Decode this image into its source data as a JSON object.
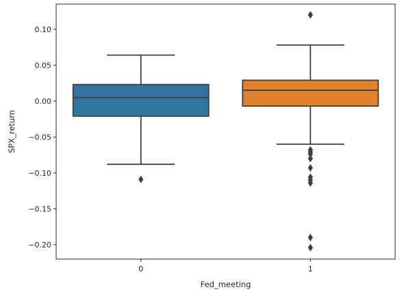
{
  "chart_data": {
    "type": "box",
    "xlabel": "Fed_meeting",
    "ylabel": "SPX_return",
    "ylim": [
      -0.22,
      0.135
    ],
    "yticks": [
      0.1,
      0.05,
      0.0,
      -0.05,
      -0.1,
      -0.15,
      -0.2
    ],
    "ytick_labels": [
      "0.10",
      "0.05",
      "0.00",
      "−0.05",
      "−0.10",
      "−0.15",
      "−0.20"
    ],
    "categories": [
      "0",
      "1"
    ],
    "grid": false,
    "legend": "none",
    "boxes": [
      {
        "category": "0",
        "color": "#3274a1",
        "whisker_low": -0.088,
        "q1": -0.021,
        "median": 0.005,
        "q3": 0.023,
        "whisker_high": 0.064,
        "outliers": [
          -0.109
        ]
      },
      {
        "category": "1",
        "color": "#e1812c",
        "whisker_low": -0.06,
        "q1": -0.007,
        "median": 0.015,
        "q3": 0.029,
        "whisker_high": 0.078,
        "outliers": [
          0.12,
          -0.068,
          -0.071,
          -0.074,
          -0.08,
          -0.093,
          -0.106,
          -0.11,
          -0.114,
          -0.19,
          -0.204
        ]
      }
    ]
  }
}
